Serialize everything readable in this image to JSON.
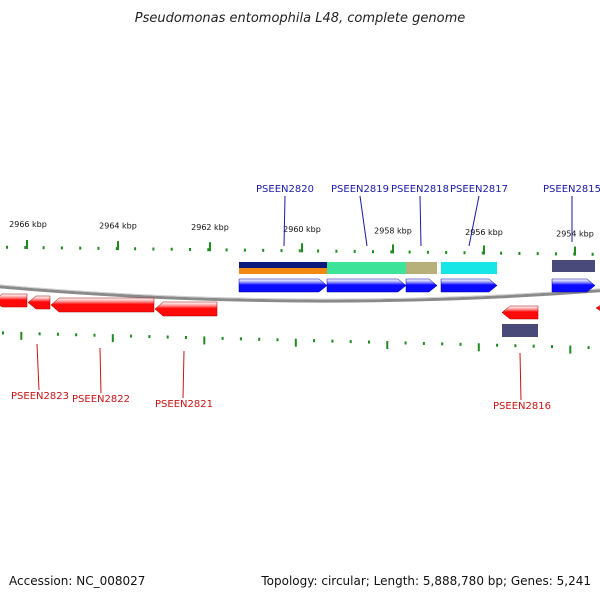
{
  "title": "Pseudomonas entomophila L48, complete genome",
  "footer": {
    "accession": "Accession: NC_008027",
    "summary": "Topology: circular; Length: 5,888,780 bp; Genes: 5,241"
  },
  "colors": {
    "forward_gene": "#0a0aff",
    "reverse_gene": "#ff0a0a",
    "forward_label": "#1a1aa8",
    "reverse_label": "#c81414",
    "tick": "#1e8c1e",
    "backbone": "#8a8a8a"
  },
  "scale": {
    "unit": "kbp",
    "ticks": [
      {
        "label": "2966 kbp",
        "value": 2966
      },
      {
        "label": "2964 kbp",
        "value": 2964
      },
      {
        "label": "2962 kbp",
        "value": 2962
      },
      {
        "label": "2960 kbp",
        "value": 2960
      },
      {
        "label": "2958 kbp",
        "value": 2958
      },
      {
        "label": "2956 kbp",
        "value": 2956
      },
      {
        "label": "2954 kbp",
        "value": 2954
      }
    ]
  },
  "genes_forward": [
    {
      "name": "PSEEN2820",
      "label": "PSEEN2820",
      "domains": [
        "#0a1a7a",
        "#f08a14"
      ]
    },
    {
      "name": "PSEEN2819",
      "label": "PSEEN2819",
      "domains": [
        "#3ee39a"
      ]
    },
    {
      "name": "PSEEN2818",
      "label": "PSEEN2818",
      "domains": [
        "#b8b07a"
      ]
    },
    {
      "name": "PSEEN2817",
      "label": "PSEEN2817",
      "domains": [
        "#16e6e6"
      ]
    },
    {
      "name": "PSEEN2815",
      "label": "PSEEN2815",
      "domains": [
        "#4a4a7a"
      ]
    }
  ],
  "genes_reverse": [
    {
      "name": "PSEEN2823",
      "label": "PSEEN2823"
    },
    {
      "name": "PSEEN2822",
      "label": "PSEEN2822"
    },
    {
      "name": "PSEEN2821",
      "label": "PSEEN2821"
    },
    {
      "name": "PSEEN2816",
      "label": "PSEEN2816",
      "domains": [
        "#4a4a7a"
      ]
    }
  ]
}
